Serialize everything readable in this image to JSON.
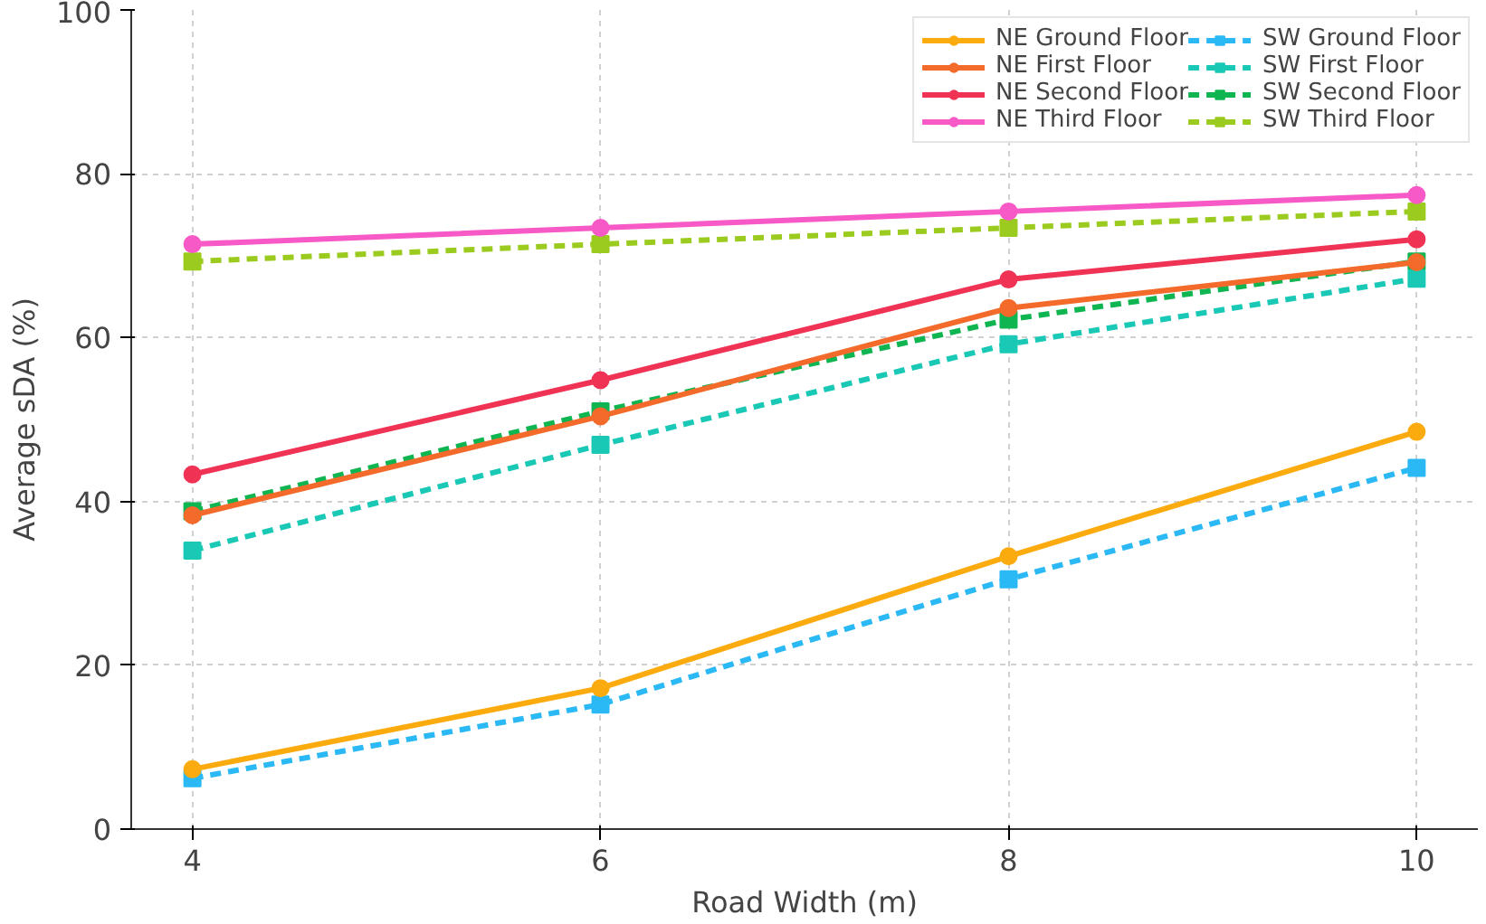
{
  "chart_data": {
    "type": "line",
    "xlabel": "Road Width (m)",
    "ylabel": "Average sDA (%)",
    "x": [
      4,
      6,
      8,
      10
    ],
    "xlim": [
      3.7,
      10.3
    ],
    "xticks": [
      4,
      6,
      8,
      10
    ],
    "ylim": [
      0,
      100
    ],
    "yticks": [
      0,
      20,
      40,
      60,
      80,
      100
    ],
    "grid": true,
    "legend": "top right",
    "series": [
      {
        "name": "NE Ground Floor",
        "color": "#fbab0e",
        "marker": "circle",
        "line_style": "solid",
        "values": [
          7.3,
          17.2,
          33.3,
          48.5
        ]
      },
      {
        "name": "NE First Floor",
        "color": "#f46a2a",
        "marker": "circle",
        "line_style": "solid",
        "values": [
          38.3,
          50.4,
          63.6,
          69.2
        ]
      },
      {
        "name": "NE Second Floor",
        "color": "#f03355",
        "marker": "circle",
        "line_style": "solid",
        "values": [
          43.3,
          54.8,
          67.1,
          72.0
        ]
      },
      {
        "name": "NE Third Floor",
        "color": "#f759c6",
        "marker": "circle",
        "line_style": "solid",
        "values": [
          71.4,
          73.4,
          75.4,
          77.4
        ]
      },
      {
        "name": "SW Ground Floor",
        "color": "#2bb9f5",
        "marker": "square",
        "line_style": "dashed",
        "values": [
          6.2,
          15.2,
          30.5,
          44.1
        ]
      },
      {
        "name": "SW First Floor",
        "color": "#19c9b5",
        "marker": "square",
        "line_style": "dashed",
        "values": [
          34.0,
          46.9,
          59.2,
          67.2
        ]
      },
      {
        "name": "SW Second Floor",
        "color": "#0fb551",
        "marker": "square",
        "line_style": "dashed",
        "values": [
          38.8,
          51.0,
          62.2,
          69.3
        ]
      },
      {
        "name": "SW Third Floor",
        "color": "#9bcb1e",
        "marker": "square",
        "line_style": "dashed",
        "values": [
          69.3,
          71.4,
          73.4,
          75.4
        ]
      }
    ]
  }
}
